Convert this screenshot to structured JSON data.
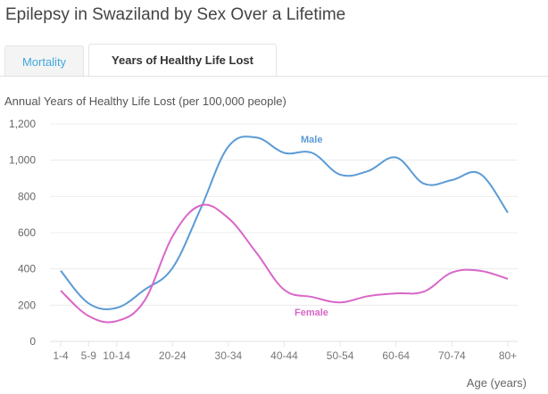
{
  "header": {
    "title": "Epilepsy in Swaziland by Sex Over a Lifetime"
  },
  "tabs": [
    {
      "label": "Mortality",
      "active": false
    },
    {
      "label": "Years of Healthy Life Lost",
      "active": true
    }
  ],
  "colors": {
    "male": "#5b9bd5",
    "female": "#d966c8",
    "tab_link": "#3fa9de",
    "grid": "#ececec"
  },
  "chart_data": {
    "type": "line",
    "title": "Annual Years of Healthy Life Lost (per 100,000 people)",
    "xlabel": "Age (years)",
    "ylabel": "",
    "ylim": [
      0,
      1200
    ],
    "yticks": [
      0,
      200,
      400,
      600,
      800,
      1000,
      1200
    ],
    "ytick_labels": [
      "0",
      "200",
      "400",
      "600",
      "800",
      "1,000",
      "1,200"
    ],
    "categories": [
      "1-4",
      "5-9",
      "10-14",
      "15-19",
      "20-24",
      "25-29",
      "30-34",
      "35-39",
      "40-44",
      "45-49",
      "50-54",
      "55-59",
      "60-64",
      "65-69",
      "70-74",
      "75-79",
      "80+"
    ],
    "xtick_labels": [
      "1-4",
      "5-9",
      "10-14",
      "",
      "20-24",
      "",
      "30-34",
      "",
      "40-44",
      "",
      "50-54",
      "",
      "60-64",
      "",
      "70-74",
      "",
      "80+"
    ],
    "grid": true,
    "series": [
      {
        "name": "Male",
        "values": [
          390,
          210,
          185,
          285,
          405,
          730,
          1075,
          1125,
          1040,
          1040,
          920,
          940,
          1015,
          870,
          890,
          925,
          710
        ]
      },
      {
        "name": "Female",
        "values": [
          280,
          140,
          112,
          225,
          580,
          750,
          680,
          490,
          285,
          245,
          215,
          250,
          265,
          275,
          380,
          390,
          345
        ]
      }
    ]
  }
}
